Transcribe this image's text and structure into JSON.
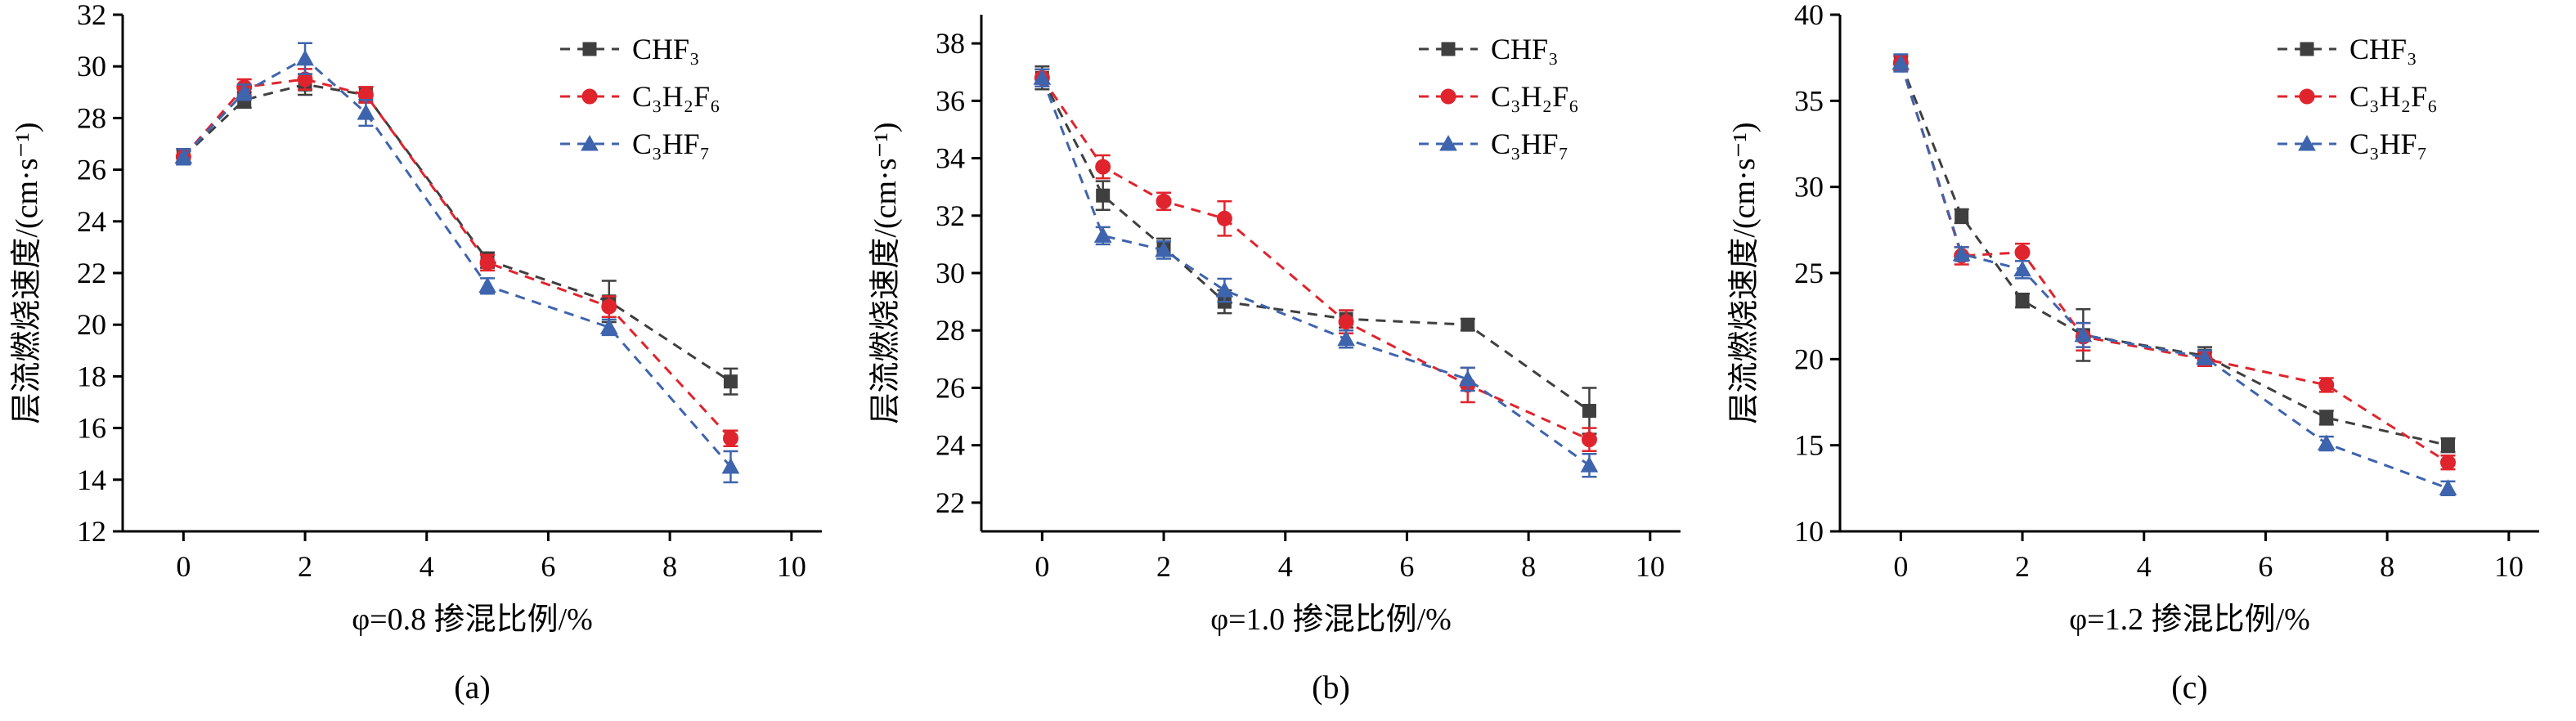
{
  "page": {
    "background": "#ffffff",
    "description_labels": {
      "caption_a": "(a)",
      "caption_b": "(b)",
      "caption_c": "(c)"
    }
  },
  "style": {
    "axis_color": "#000000",
    "text_color": "#000000",
    "font_size_tick": 36,
    "font_size_label": 38,
    "font_size_caption": 40,
    "font_size_legend": 36,
    "series_colors": {
      "CHF3": "#3f3f3f",
      "C3H2F6": "#e0242d",
      "C3HF7": "#3e64ad"
    }
  },
  "chart_data": [
    {
      "type": "line",
      "caption": "(a)",
      "xlabel": "φ=0.8 掺混比例/%",
      "ylabel": "层流燃烧速度/(cm·s⁻¹)",
      "xlim": [
        -1,
        10.5
      ],
      "ylim": [
        12,
        32
      ],
      "xticks": [
        0,
        2,
        4,
        6,
        8,
        10
      ],
      "yticks": [
        12,
        14,
        16,
        18,
        20,
        22,
        24,
        26,
        28,
        30,
        32
      ],
      "x": [
        0,
        1,
        2,
        3,
        5,
        7,
        9
      ],
      "grid": false,
      "legend_position": "top-right",
      "series": [
        {
          "name": "CHF₃",
          "color": "#3f3f3f",
          "marker": "square",
          "line": "dashed",
          "values": [
            26.5,
            28.7,
            29.3,
            28.9,
            22.5,
            20.9,
            17.8
          ],
          "err": [
            0.3,
            0.3,
            0.4,
            0.3,
            0.3,
            0.8,
            0.5
          ]
        },
        {
          "name": "C₃H₂F₆",
          "color": "#e0242d",
          "marker": "circle",
          "line": "dashed",
          "values": [
            26.5,
            29.2,
            29.5,
            28.9,
            22.4,
            20.7,
            15.6
          ],
          "err": [
            0.3,
            0.3,
            0.4,
            0.3,
            0.3,
            0.4,
            0.3
          ]
        },
        {
          "name": "C₃HF₇",
          "color": "#3e64ad",
          "marker": "triangle",
          "line": "dashed",
          "values": [
            26.5,
            29.0,
            30.3,
            28.2,
            21.5,
            19.9,
            14.5
          ],
          "err": [
            0.3,
            0.3,
            0.6,
            0.5,
            0.3,
            0.3,
            0.6
          ]
        }
      ]
    },
    {
      "type": "line",
      "caption": "(b)",
      "xlabel": "φ=1.0 掺混比例/%",
      "ylabel": "层流燃烧速度/(cm·s⁻¹)",
      "xlim": [
        -1,
        10.5
      ],
      "ylim": [
        21,
        39
      ],
      "xticks": [
        0,
        2,
        4,
        6,
        8,
        10
      ],
      "yticks": [
        22,
        24,
        26,
        28,
        30,
        32,
        34,
        36,
        38
      ],
      "x": [
        0,
        1,
        2,
        3,
        5,
        7,
        9
      ],
      "grid": false,
      "legend_position": "top-right",
      "series": [
        {
          "name": "CHF₃",
          "color": "#3f3f3f",
          "marker": "square",
          "line": "dashed",
          "values": [
            36.8,
            32.7,
            30.9,
            29.0,
            28.4,
            28.2,
            25.2
          ],
          "err": [
            0.4,
            0.5,
            0.3,
            0.4,
            0.3,
            0.2,
            0.8
          ]
        },
        {
          "name": "C₃H₂F₆",
          "color": "#e0242d",
          "marker": "circle",
          "line": "dashed",
          "values": [
            36.8,
            33.7,
            32.5,
            31.9,
            28.3,
            26.1,
            24.2
          ],
          "err": [
            0.3,
            0.4,
            0.3,
            0.6,
            0.4,
            0.6,
            0.4
          ]
        },
        {
          "name": "C₃HF₇",
          "color": "#3e64ad",
          "marker": "triangle",
          "line": "dashed",
          "values": [
            36.8,
            31.3,
            30.8,
            29.4,
            27.7,
            26.3,
            23.3
          ],
          "err": [
            0.3,
            0.3,
            0.3,
            0.4,
            0.3,
            0.4,
            0.4
          ]
        }
      ]
    },
    {
      "type": "line",
      "caption": "(c)",
      "xlabel": "φ=1.2 掺混比例/%",
      "ylabel": "层流燃烧速度/(cm·s⁻¹)",
      "xlim": [
        -1,
        10.5
      ],
      "ylim": [
        10,
        40
      ],
      "xticks": [
        0,
        2,
        4,
        6,
        8,
        10
      ],
      "yticks": [
        10,
        15,
        20,
        25,
        30,
        35,
        40
      ],
      "x": [
        0,
        1,
        2,
        3,
        5,
        7,
        9
      ],
      "grid": false,
      "legend_position": "top-right",
      "series": [
        {
          "name": "CHF₃",
          "color": "#3f3f3f",
          "marker": "square",
          "line": "dashed",
          "values": [
            37.2,
            28.3,
            23.4,
            21.4,
            20.2,
            16.6,
            15.0
          ],
          "err": [
            0.4,
            0.4,
            0.4,
            1.5,
            0.5,
            0.4,
            0.4
          ]
        },
        {
          "name": "C₃H₂F₆",
          "color": "#e0242d",
          "marker": "circle",
          "line": "dashed",
          "values": [
            37.2,
            26.0,
            26.2,
            21.3,
            20.0,
            18.5,
            14.0
          ],
          "err": [
            0.4,
            0.5,
            0.5,
            0.8,
            0.4,
            0.4,
            0.4
          ]
        },
        {
          "name": "C₃HF₇",
          "color": "#3e64ad",
          "marker": "triangle",
          "line": "dashed",
          "values": [
            37.2,
            26.1,
            25.2,
            21.4,
            20.1,
            15.1,
            12.5
          ],
          "err": [
            0.5,
            0.4,
            0.5,
            0.7,
            0.4,
            0.4,
            0.4
          ]
        }
      ]
    }
  ]
}
